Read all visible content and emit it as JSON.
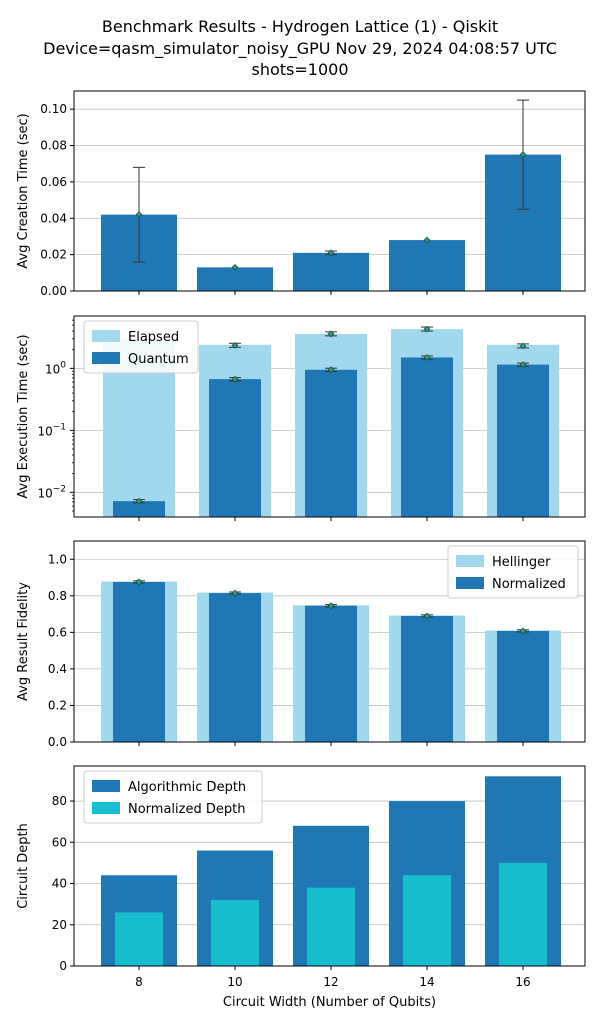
{
  "title_lines": [
    "Benchmark Results - Hydrogen Lattice (1) - Qiskit",
    "Device=qasm_simulator_noisy_GPU  Nov 29, 2024 04:08:57 UTC",
    "shots=1000"
  ],
  "colors": {
    "dark_blue": "#1f77b4",
    "light_blue": "#a1d8ee",
    "cyan": "#17becf",
    "marker_fill": "#1aa37a",
    "grid": "#c0c0c0"
  },
  "chart_data": [
    {
      "type": "bar",
      "ylabel": "Avg Creation Time (sec)",
      "x": [
        8,
        10,
        12,
        14,
        16
      ],
      "ylim": [
        0,
        0.11
      ],
      "yticks": [
        "0.00",
        "0.02",
        "0.04",
        "0.06",
        "0.08",
        "0.10"
      ],
      "grid": true,
      "series": [
        {
          "values": [
            0.042,
            0.013,
            0.021,
            0.028,
            0.075
          ],
          "error": [
            0.026,
            0.0005,
            0.001,
            0.0005,
            0.03
          ]
        }
      ]
    },
    {
      "type": "bar",
      "ylabel": "Avg Execution Time (sec)",
      "yscale": "log",
      "x": [
        8,
        10,
        12,
        14,
        16
      ],
      "ylim": [
        0.004,
        7
      ],
      "yticks": [
        "10^-2",
        "10^-1",
        "10^0"
      ],
      "grid": true,
      "legend": "top-left",
      "series": [
        {
          "name": "Elapsed",
          "values": [
            3.0,
            2.4,
            3.6,
            4.3,
            2.4
          ],
          "marker_values": [
            null,
            2.35,
            3.6,
            4.3,
            2.3
          ]
        },
        {
          "name": "Quantum",
          "values": [
            0.0072,
            0.67,
            0.95,
            1.5,
            1.15
          ]
        }
      ]
    },
    {
      "type": "bar",
      "ylabel": "Avg Result Fidelity",
      "x": [
        8,
        10,
        12,
        14,
        16
      ],
      "ylim": [
        0,
        1.1
      ],
      "yticks": [
        "0.0",
        "0.2",
        "0.4",
        "0.6",
        "0.8",
        "1.0"
      ],
      "grid": true,
      "legend": "top-right",
      "series": [
        {
          "name": "Hellinger",
          "values": [
            0.878,
            0.818,
            0.748,
            0.692,
            0.61
          ]
        },
        {
          "name": "Normalized",
          "values": [
            0.876,
            0.815,
            0.746,
            0.69,
            0.608
          ]
        }
      ]
    },
    {
      "type": "bar",
      "ylabel": "Circuit Depth",
      "xlabel": "Circuit Width (Number of Qubits)",
      "x": [
        8,
        10,
        12,
        14,
        16
      ],
      "xticks": [
        "8",
        "10",
        "12",
        "14",
        "16"
      ],
      "ylim": [
        0,
        97
      ],
      "yticks": [
        "0",
        "20",
        "40",
        "60",
        "80"
      ],
      "grid": true,
      "legend": "top-left",
      "series": [
        {
          "name": "Algorithmic Depth",
          "values": [
            44,
            56,
            68,
            80,
            92
          ]
        },
        {
          "name": "Normalized Depth",
          "values": [
            26,
            32,
            38,
            44,
            50
          ]
        }
      ]
    }
  ]
}
